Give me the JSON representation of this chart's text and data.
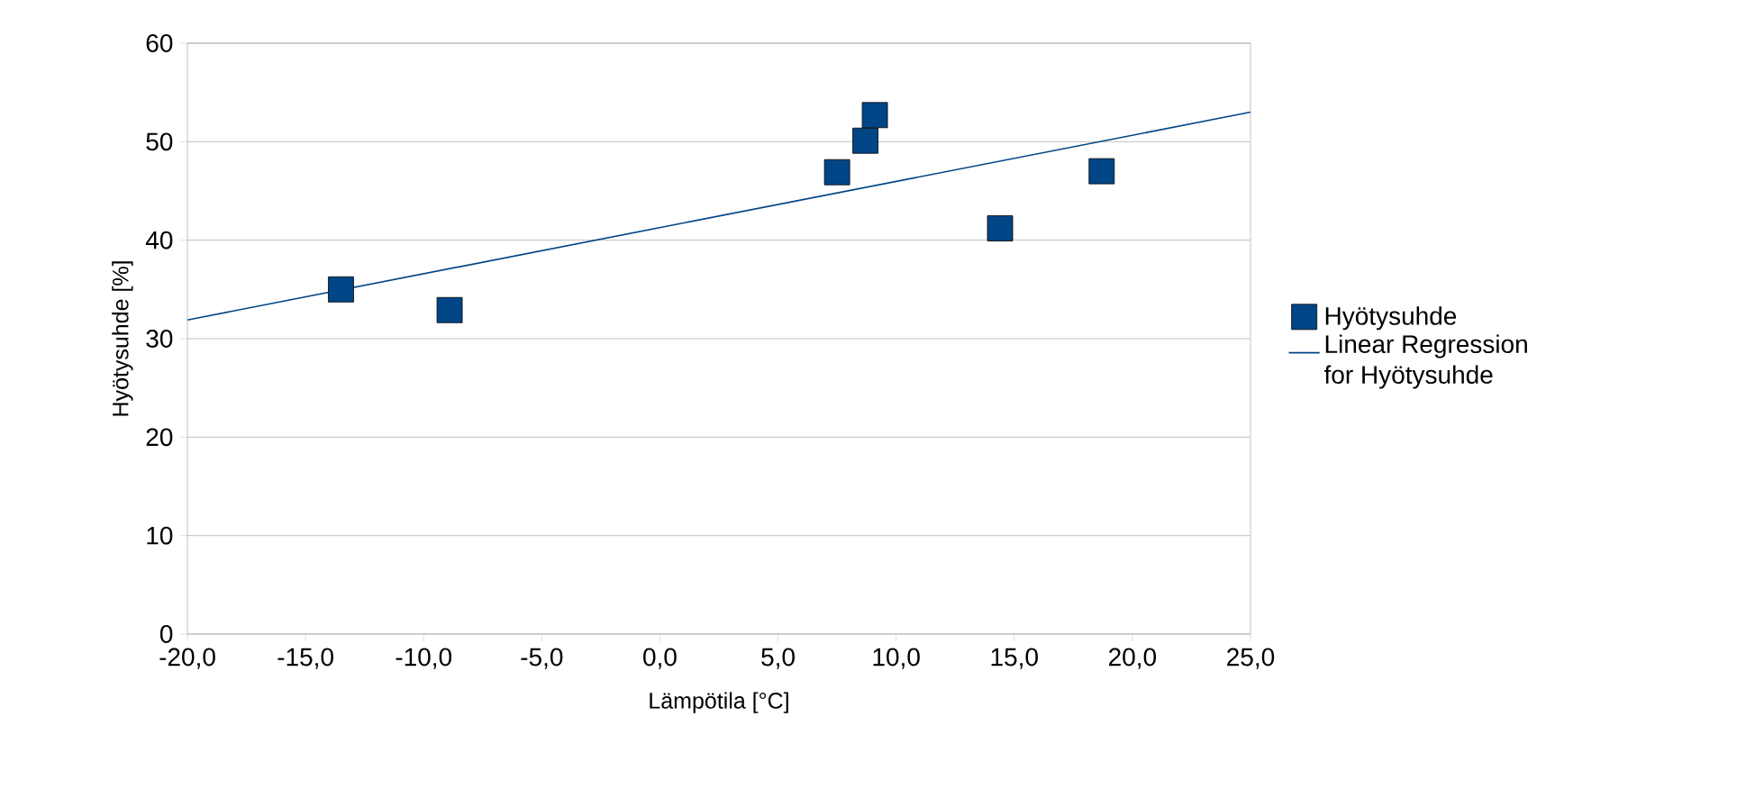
{
  "chart_data": {
    "type": "scatter",
    "xlabel": "Lämpötila [°C]",
    "ylabel": "Hyötysuhde [%]",
    "xlim": [
      -20,
      25
    ],
    "ylim": [
      0,
      60
    ],
    "xticks": [
      {
        "value": -20,
        "label": "-20,0"
      },
      {
        "value": -15,
        "label": "-15,0"
      },
      {
        "value": -10,
        "label": "-10,0"
      },
      {
        "value": -5,
        "label": "-5,0"
      },
      {
        "value": 0,
        "label": "0,0"
      },
      {
        "value": 5,
        "label": "5,0"
      },
      {
        "value": 10,
        "label": "10,0"
      },
      {
        "value": 15,
        "label": "15,0"
      },
      {
        "value": 20,
        "label": "20,0"
      },
      {
        "value": 25,
        "label": "25,0"
      }
    ],
    "yticks": [
      0,
      10,
      20,
      30,
      40,
      50,
      60
    ],
    "grid": "y",
    "legend": "right",
    "series": [
      {
        "name": "Hyötysuhde",
        "marker": "square",
        "color": "#004586",
        "x": [
          -13.5,
          -8.9,
          7.5,
          8.7,
          9.1,
          14.4,
          18.7
        ],
        "values": [
          35.0,
          32.9,
          46.9,
          50.1,
          52.7,
          41.2,
          47.0
        ]
      },
      {
        "name": "Linear Regression for Hyötysuhde",
        "type": "line",
        "marker": "none",
        "color": "#004586",
        "x": [
          -20,
          25
        ],
        "values": [
          31.9,
          53.0
        ]
      }
    ]
  }
}
